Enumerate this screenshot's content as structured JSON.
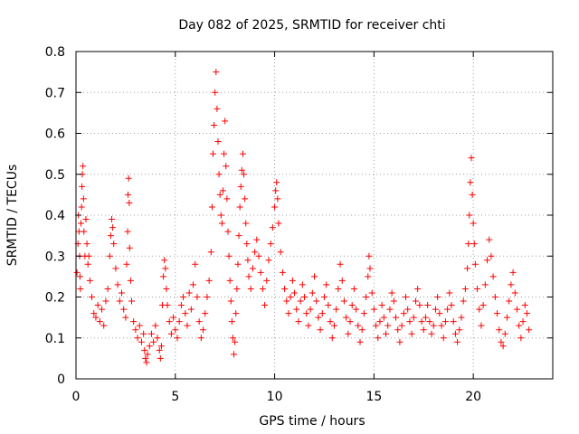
{
  "chart_data": {
    "type": "scatter",
    "title": "Day 082 of 2025, SRMTID for receiver chti",
    "xlabel": "GPS time / hours",
    "ylabel": "SRMTID / TECUs",
    "xlim": [
      0,
      24
    ],
    "ylim": [
      0,
      0.8
    ],
    "xticks": [
      0,
      5,
      10,
      15,
      20
    ],
    "xtick_labels": [
      "0",
      "5",
      "10",
      "15",
      "20"
    ],
    "yticks": [
      0,
      0.1,
      0.2,
      0.3,
      0.4,
      0.5,
      0.6,
      0.7,
      0.8
    ],
    "ytick_labels": [
      "0",
      "0.1",
      "0.2",
      "0.3",
      "0.4",
      "0.5",
      "0.6",
      "0.7",
      "0.8"
    ],
    "grid": true,
    "marker": "+",
    "series": [
      {
        "name": "SRMTID",
        "color": "#ff0000",
        "points": [
          [
            0.05,
            0.26
          ],
          [
            0.1,
            0.33
          ],
          [
            0.12,
            0.4
          ],
          [
            0.15,
            0.36
          ],
          [
            0.18,
            0.3
          ],
          [
            0.2,
            0.25
          ],
          [
            0.22,
            0.22
          ],
          [
            0.25,
            0.38
          ],
          [
            0.28,
            0.42
          ],
          [
            0.3,
            0.47
          ],
          [
            0.32,
            0.5
          ],
          [
            0.35,
            0.52
          ],
          [
            0.38,
            0.44
          ],
          [
            0.4,
            0.36
          ],
          [
            0.45,
            0.3
          ],
          [
            0.5,
            0.39
          ],
          [
            0.55,
            0.33
          ],
          [
            0.6,
            0.28
          ],
          [
            0.65,
            0.3
          ],
          [
            0.7,
            0.24
          ],
          [
            0.8,
            0.2
          ],
          [
            0.9,
            0.16
          ],
          [
            1.0,
            0.15
          ],
          [
            1.1,
            0.18
          ],
          [
            1.2,
            0.14
          ],
          [
            1.3,
            0.17
          ],
          [
            1.4,
            0.13
          ],
          [
            1.5,
            0.19
          ],
          [
            1.6,
            0.22
          ],
          [
            1.7,
            0.3
          ],
          [
            1.75,
            0.35
          ],
          [
            1.8,
            0.39
          ],
          [
            1.85,
            0.37
          ],
          [
            1.9,
            0.33
          ],
          [
            2.0,
            0.27
          ],
          [
            2.1,
            0.23
          ],
          [
            2.2,
            0.19
          ],
          [
            2.3,
            0.21
          ],
          [
            2.4,
            0.17
          ],
          [
            2.5,
            0.15
          ],
          [
            2.55,
            0.28
          ],
          [
            2.6,
            0.36
          ],
          [
            2.62,
            0.45
          ],
          [
            2.65,
            0.49
          ],
          [
            2.68,
            0.43
          ],
          [
            2.7,
            0.32
          ],
          [
            2.75,
            0.24
          ],
          [
            2.8,
            0.19
          ],
          [
            2.9,
            0.14
          ],
          [
            3.0,
            0.12
          ],
          [
            3.1,
            0.1
          ],
          [
            3.2,
            0.13
          ],
          [
            3.3,
            0.09
          ],
          [
            3.4,
            0.11
          ],
          [
            3.45,
            0.07
          ],
          [
            3.5,
            0.05
          ],
          [
            3.55,
            0.04
          ],
          [
            3.6,
            0.06
          ],
          [
            3.7,
            0.08
          ],
          [
            3.8,
            0.11
          ],
          [
            3.9,
            0.09
          ],
          [
            4.0,
            0.13
          ],
          [
            4.1,
            0.1
          ],
          [
            4.2,
            0.07
          ],
          [
            4.25,
            0.05
          ],
          [
            4.3,
            0.08
          ],
          [
            4.35,
            0.18
          ],
          [
            4.4,
            0.25
          ],
          [
            4.45,
            0.29
          ],
          [
            4.5,
            0.27
          ],
          [
            4.55,
            0.22
          ],
          [
            4.6,
            0.18
          ],
          [
            4.7,
            0.14
          ],
          [
            4.8,
            0.11
          ],
          [
            4.9,
            0.15
          ],
          [
            5.0,
            0.12
          ],
          [
            5.1,
            0.1
          ],
          [
            5.2,
            0.14
          ],
          [
            5.3,
            0.18
          ],
          [
            5.4,
            0.2
          ],
          [
            5.5,
            0.16
          ],
          [
            5.6,
            0.13
          ],
          [
            5.7,
            0.21
          ],
          [
            5.8,
            0.17
          ],
          [
            5.9,
            0.23
          ],
          [
            6.0,
            0.28
          ],
          [
            6.1,
            0.2
          ],
          [
            6.2,
            0.14
          ],
          [
            6.3,
            0.1
          ],
          [
            6.4,
            0.12
          ],
          [
            6.5,
            0.16
          ],
          [
            6.6,
            0.2
          ],
          [
            6.7,
            0.24
          ],
          [
            6.8,
            0.31
          ],
          [
            6.85,
            0.42
          ],
          [
            6.9,
            0.55
          ],
          [
            6.95,
            0.62
          ],
          [
            7.0,
            0.7
          ],
          [
            7.05,
            0.75
          ],
          [
            7.1,
            0.66
          ],
          [
            7.15,
            0.58
          ],
          [
            7.2,
            0.5
          ],
          [
            7.25,
            0.45
          ],
          [
            7.3,
            0.4
          ],
          [
            7.35,
            0.38
          ],
          [
            7.4,
            0.46
          ],
          [
            7.45,
            0.55
          ],
          [
            7.5,
            0.63
          ],
          [
            7.55,
            0.52
          ],
          [
            7.6,
            0.44
          ],
          [
            7.65,
            0.36
          ],
          [
            7.7,
            0.3
          ],
          [
            7.75,
            0.24
          ],
          [
            7.8,
            0.19
          ],
          [
            7.85,
            0.14
          ],
          [
            7.9,
            0.1
          ],
          [
            7.95,
            0.06
          ],
          [
            8.0,
            0.09
          ],
          [
            8.05,
            0.16
          ],
          [
            8.1,
            0.22
          ],
          [
            8.15,
            0.28
          ],
          [
            8.2,
            0.35
          ],
          [
            8.25,
            0.42
          ],
          [
            8.3,
            0.47
          ],
          [
            8.35,
            0.51
          ],
          [
            8.4,
            0.55
          ],
          [
            8.45,
            0.5
          ],
          [
            8.5,
            0.44
          ],
          [
            8.55,
            0.38
          ],
          [
            8.6,
            0.33
          ],
          [
            8.65,
            0.29
          ],
          [
            8.7,
            0.25
          ],
          [
            8.8,
            0.22
          ],
          [
            8.9,
            0.27
          ],
          [
            9.0,
            0.31
          ],
          [
            9.1,
            0.34
          ],
          [
            9.2,
            0.3
          ],
          [
            9.3,
            0.26
          ],
          [
            9.4,
            0.22
          ],
          [
            9.5,
            0.18
          ],
          [
            9.6,
            0.24
          ],
          [
            9.7,
            0.29
          ],
          [
            9.8,
            0.33
          ],
          [
            9.9,
            0.37
          ],
          [
            10.0,
            0.42
          ],
          [
            10.05,
            0.46
          ],
          [
            10.1,
            0.48
          ],
          [
            10.15,
            0.44
          ],
          [
            10.2,
            0.38
          ],
          [
            10.3,
            0.31
          ],
          [
            10.4,
            0.26
          ],
          [
            10.5,
            0.22
          ],
          [
            10.6,
            0.19
          ],
          [
            10.7,
            0.16
          ],
          [
            10.8,
            0.2
          ],
          [
            10.9,
            0.24
          ],
          [
            11.0,
            0.21
          ],
          [
            11.1,
            0.17
          ],
          [
            11.2,
            0.14
          ],
          [
            11.3,
            0.19
          ],
          [
            11.4,
            0.23
          ],
          [
            11.5,
            0.2
          ],
          [
            11.6,
            0.16
          ],
          [
            11.7,
            0.13
          ],
          [
            11.8,
            0.17
          ],
          [
            11.9,
            0.21
          ],
          [
            12.0,
            0.25
          ],
          [
            12.1,
            0.19
          ],
          [
            12.2,
            0.15
          ],
          [
            12.3,
            0.12
          ],
          [
            12.4,
            0.16
          ],
          [
            12.5,
            0.2
          ],
          [
            12.6,
            0.23
          ],
          [
            12.7,
            0.18
          ],
          [
            12.8,
            0.14
          ],
          [
            12.9,
            0.1
          ],
          [
            13.0,
            0.13
          ],
          [
            13.1,
            0.17
          ],
          [
            13.2,
            0.22
          ],
          [
            13.3,
            0.28
          ],
          [
            13.4,
            0.24
          ],
          [
            13.5,
            0.19
          ],
          [
            13.6,
            0.15
          ],
          [
            13.7,
            0.11
          ],
          [
            13.8,
            0.14
          ],
          [
            13.9,
            0.18
          ],
          [
            14.0,
            0.22
          ],
          [
            14.1,
            0.17
          ],
          [
            14.2,
            0.13
          ],
          [
            14.3,
            0.09
          ],
          [
            14.4,
            0.12
          ],
          [
            14.5,
            0.16
          ],
          [
            14.6,
            0.2
          ],
          [
            14.7,
            0.25
          ],
          [
            14.75,
            0.3
          ],
          [
            14.8,
            0.27
          ],
          [
            14.9,
            0.21
          ],
          [
            15.0,
            0.17
          ],
          [
            15.1,
            0.13
          ],
          [
            15.2,
            0.1
          ],
          [
            15.3,
            0.14
          ],
          [
            15.4,
            0.18
          ],
          [
            15.5,
            0.15
          ],
          [
            15.6,
            0.11
          ],
          [
            15.7,
            0.13
          ],
          [
            15.8,
            0.17
          ],
          [
            15.9,
            0.21
          ],
          [
            16.0,
            0.19
          ],
          [
            16.1,
            0.15
          ],
          [
            16.2,
            0.12
          ],
          [
            16.3,
            0.09
          ],
          [
            16.4,
            0.13
          ],
          [
            16.5,
            0.16
          ],
          [
            16.6,
            0.2
          ],
          [
            16.7,
            0.17
          ],
          [
            16.8,
            0.14
          ],
          [
            16.9,
            0.11
          ],
          [
            17.0,
            0.15
          ],
          [
            17.1,
            0.19
          ],
          [
            17.2,
            0.22
          ],
          [
            17.3,
            0.18
          ],
          [
            17.4,
            0.14
          ],
          [
            17.5,
            0.12
          ],
          [
            17.6,
            0.15
          ],
          [
            17.7,
            0.18
          ],
          [
            17.8,
            0.14
          ],
          [
            17.9,
            0.11
          ],
          [
            18.0,
            0.13
          ],
          [
            18.1,
            0.17
          ],
          [
            18.2,
            0.2
          ],
          [
            18.3,
            0.16
          ],
          [
            18.4,
            0.13
          ],
          [
            18.5,
            0.1
          ],
          [
            18.6,
            0.14
          ],
          [
            18.7,
            0.17
          ],
          [
            18.8,
            0.21
          ],
          [
            18.9,
            0.18
          ],
          [
            19.0,
            0.14
          ],
          [
            19.1,
            0.11
          ],
          [
            19.2,
            0.09
          ],
          [
            19.3,
            0.12
          ],
          [
            19.4,
            0.15
          ],
          [
            19.5,
            0.19
          ],
          [
            19.6,
            0.22
          ],
          [
            19.7,
            0.27
          ],
          [
            19.75,
            0.33
          ],
          [
            19.8,
            0.4
          ],
          [
            19.85,
            0.48
          ],
          [
            19.9,
            0.54
          ],
          [
            19.95,
            0.45
          ],
          [
            20.0,
            0.38
          ],
          [
            20.05,
            0.33
          ],
          [
            20.1,
            0.28
          ],
          [
            20.2,
            0.22
          ],
          [
            20.3,
            0.17
          ],
          [
            20.4,
            0.13
          ],
          [
            20.5,
            0.18
          ],
          [
            20.6,
            0.23
          ],
          [
            20.7,
            0.29
          ],
          [
            20.8,
            0.34
          ],
          [
            20.9,
            0.3
          ],
          [
            21.0,
            0.25
          ],
          [
            21.1,
            0.2
          ],
          [
            21.2,
            0.16
          ],
          [
            21.3,
            0.12
          ],
          [
            21.4,
            0.09
          ],
          [
            21.5,
            0.08
          ],
          [
            21.6,
            0.11
          ],
          [
            21.7,
            0.15
          ],
          [
            21.8,
            0.19
          ],
          [
            21.9,
            0.23
          ],
          [
            22.0,
            0.26
          ],
          [
            22.1,
            0.21
          ],
          [
            22.2,
            0.17
          ],
          [
            22.3,
            0.13
          ],
          [
            22.4,
            0.1
          ],
          [
            22.5,
            0.14
          ],
          [
            22.6,
            0.18
          ],
          [
            22.7,
            0.16
          ],
          [
            22.8,
            0.12
          ]
        ]
      }
    ]
  }
}
